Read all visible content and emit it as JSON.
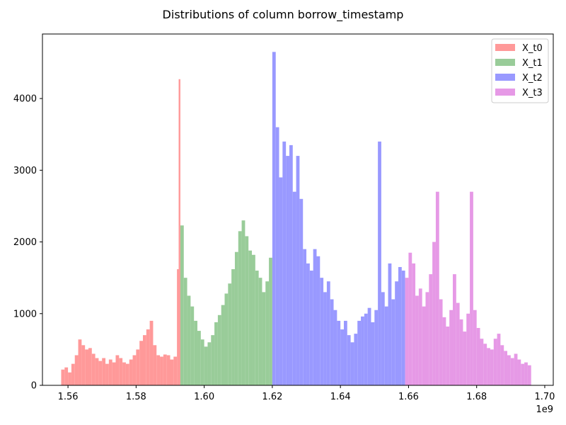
{
  "chart_data": {
    "type": "histogram",
    "title": "Distributions of column borrow_timestamp",
    "xlabel": "",
    "ylabel": "",
    "x_offset_label": "1e9",
    "xlim": [
      1.5525,
      1.7025
    ],
    "ylim": [
      0,
      4900
    ],
    "x_ticks": [
      1.56,
      1.58,
      1.6,
      1.62,
      1.64,
      1.66,
      1.68,
      1.7
    ],
    "x_tick_labels": [
      "1.56",
      "1.58",
      "1.60",
      "1.62",
      "1.64",
      "1.66",
      "1.68",
      "1.70"
    ],
    "y_ticks": [
      0,
      1000,
      2000,
      3000,
      4000
    ],
    "y_tick_labels": [
      "0",
      "1000",
      "2000",
      "3000",
      "4000"
    ],
    "grid": false,
    "legend_position": "top-right",
    "series": [
      {
        "name": "X_t0",
        "color": "#ff9999",
        "bins": [
          [
            1.558,
            1.559,
            220
          ],
          [
            1.559,
            1.56,
            250
          ],
          [
            1.56,
            1.561,
            180
          ],
          [
            1.561,
            1.562,
            300
          ],
          [
            1.562,
            1.563,
            420
          ],
          [
            1.563,
            1.564,
            640
          ],
          [
            1.564,
            1.565,
            560
          ],
          [
            1.565,
            1.566,
            500
          ],
          [
            1.566,
            1.567,
            520
          ],
          [
            1.567,
            1.568,
            440
          ],
          [
            1.568,
            1.569,
            380
          ],
          [
            1.569,
            1.57,
            340
          ],
          [
            1.57,
            1.571,
            380
          ],
          [
            1.571,
            1.572,
            300
          ],
          [
            1.572,
            1.573,
            360
          ],
          [
            1.573,
            1.574,
            320
          ],
          [
            1.574,
            1.575,
            420
          ],
          [
            1.575,
            1.576,
            380
          ],
          [
            1.576,
            1.577,
            320
          ],
          [
            1.577,
            1.578,
            300
          ],
          [
            1.578,
            1.579,
            360
          ],
          [
            1.579,
            1.58,
            420
          ],
          [
            1.58,
            1.581,
            500
          ],
          [
            1.581,
            1.582,
            620
          ],
          [
            1.582,
            1.583,
            700
          ],
          [
            1.583,
            1.584,
            780
          ],
          [
            1.584,
            1.585,
            900
          ],
          [
            1.585,
            1.586,
            560
          ],
          [
            1.586,
            1.587,
            420
          ],
          [
            1.587,
            1.588,
            400
          ],
          [
            1.588,
            1.589,
            430
          ],
          [
            1.589,
            1.59,
            420
          ],
          [
            1.59,
            1.591,
            360
          ],
          [
            1.591,
            1.592,
            400
          ],
          [
            1.592,
            1.5925,
            1620
          ],
          [
            1.5925,
            1.593,
            4270
          ]
        ]
      },
      {
        "name": "X_t1",
        "color": "#99cc99",
        "bins": [
          [
            1.593,
            1.594,
            2230
          ],
          [
            1.594,
            1.595,
            1500
          ],
          [
            1.595,
            1.596,
            1250
          ],
          [
            1.596,
            1.597,
            1100
          ],
          [
            1.597,
            1.598,
            900
          ],
          [
            1.598,
            1.599,
            760
          ],
          [
            1.599,
            1.6,
            640
          ],
          [
            1.6,
            1.601,
            540
          ],
          [
            1.601,
            1.602,
            600
          ],
          [
            1.602,
            1.603,
            700
          ],
          [
            1.603,
            1.604,
            880
          ],
          [
            1.604,
            1.605,
            980
          ],
          [
            1.605,
            1.606,
            1120
          ],
          [
            1.606,
            1.607,
            1280
          ],
          [
            1.607,
            1.608,
            1420
          ],
          [
            1.608,
            1.609,
            1620
          ],
          [
            1.609,
            1.61,
            1860
          ],
          [
            1.61,
            1.611,
            2150
          ],
          [
            1.611,
            1.612,
            2300
          ],
          [
            1.612,
            1.613,
            2080
          ],
          [
            1.613,
            1.614,
            1880
          ],
          [
            1.614,
            1.615,
            1820
          ],
          [
            1.615,
            1.616,
            1600
          ],
          [
            1.616,
            1.617,
            1500
          ],
          [
            1.617,
            1.618,
            1300
          ],
          [
            1.618,
            1.619,
            1450
          ],
          [
            1.619,
            1.62,
            1780
          ]
        ]
      },
      {
        "name": "X_t2",
        "color": "#9999ff",
        "bins": [
          [
            1.62,
            1.621,
            4650
          ],
          [
            1.621,
            1.622,
            3600
          ],
          [
            1.622,
            1.623,
            2900
          ],
          [
            1.623,
            1.624,
            3400
          ],
          [
            1.624,
            1.625,
            3200
          ],
          [
            1.625,
            1.626,
            3350
          ],
          [
            1.626,
            1.627,
            2700
          ],
          [
            1.627,
            1.628,
            3200
          ],
          [
            1.628,
            1.629,
            2600
          ],
          [
            1.629,
            1.63,
            1900
          ],
          [
            1.63,
            1.631,
            1700
          ],
          [
            1.631,
            1.632,
            1600
          ],
          [
            1.632,
            1.633,
            1900
          ],
          [
            1.633,
            1.634,
            1800
          ],
          [
            1.634,
            1.635,
            1500
          ],
          [
            1.635,
            1.636,
            1300
          ],
          [
            1.636,
            1.637,
            1450
          ],
          [
            1.637,
            1.638,
            1200
          ],
          [
            1.638,
            1.639,
            1050
          ],
          [
            1.639,
            1.64,
            900
          ],
          [
            1.64,
            1.641,
            780
          ],
          [
            1.641,
            1.642,
            900
          ],
          [
            1.642,
            1.643,
            700
          ],
          [
            1.643,
            1.644,
            600
          ],
          [
            1.644,
            1.645,
            720
          ],
          [
            1.645,
            1.646,
            900
          ],
          [
            1.646,
            1.647,
            960
          ],
          [
            1.647,
            1.648,
            1000
          ],
          [
            1.648,
            1.649,
            1080
          ],
          [
            1.649,
            1.65,
            880
          ],
          [
            1.65,
            1.651,
            1050
          ],
          [
            1.651,
            1.652,
            3400
          ],
          [
            1.652,
            1.653,
            1300
          ],
          [
            1.653,
            1.654,
            1100
          ],
          [
            1.654,
            1.655,
            1700
          ],
          [
            1.655,
            1.656,
            1200
          ],
          [
            1.656,
            1.657,
            1450
          ],
          [
            1.657,
            1.658,
            1650
          ],
          [
            1.658,
            1.659,
            1600
          ]
        ]
      },
      {
        "name": "X_t3",
        "color": "#e699e6",
        "bins": [
          [
            1.659,
            1.66,
            1500
          ],
          [
            1.66,
            1.661,
            1850
          ],
          [
            1.661,
            1.662,
            1700
          ],
          [
            1.662,
            1.663,
            1250
          ],
          [
            1.663,
            1.664,
            1350
          ],
          [
            1.664,
            1.665,
            1100
          ],
          [
            1.665,
            1.666,
            1300
          ],
          [
            1.666,
            1.667,
            1550
          ],
          [
            1.667,
            1.668,
            2000
          ],
          [
            1.668,
            1.669,
            2700
          ],
          [
            1.669,
            1.67,
            1200
          ],
          [
            1.67,
            1.671,
            950
          ],
          [
            1.671,
            1.672,
            820
          ],
          [
            1.672,
            1.673,
            1050
          ],
          [
            1.673,
            1.674,
            1550
          ],
          [
            1.674,
            1.675,
            1150
          ],
          [
            1.675,
            1.676,
            920
          ],
          [
            1.676,
            1.677,
            750
          ],
          [
            1.677,
            1.678,
            1000
          ],
          [
            1.678,
            1.679,
            2700
          ],
          [
            1.679,
            1.68,
            1050
          ],
          [
            1.68,
            1.681,
            800
          ],
          [
            1.681,
            1.682,
            650
          ],
          [
            1.682,
            1.683,
            580
          ],
          [
            1.683,
            1.684,
            520
          ],
          [
            1.684,
            1.685,
            500
          ],
          [
            1.685,
            1.686,
            650
          ],
          [
            1.686,
            1.687,
            720
          ],
          [
            1.687,
            1.688,
            560
          ],
          [
            1.688,
            1.689,
            480
          ],
          [
            1.689,
            1.69,
            420
          ],
          [
            1.69,
            1.691,
            380
          ],
          [
            1.691,
            1.692,
            440
          ],
          [
            1.692,
            1.693,
            360
          ],
          [
            1.693,
            1.694,
            300
          ],
          [
            1.694,
            1.695,
            320
          ],
          [
            1.695,
            1.696,
            280
          ]
        ]
      }
    ]
  }
}
